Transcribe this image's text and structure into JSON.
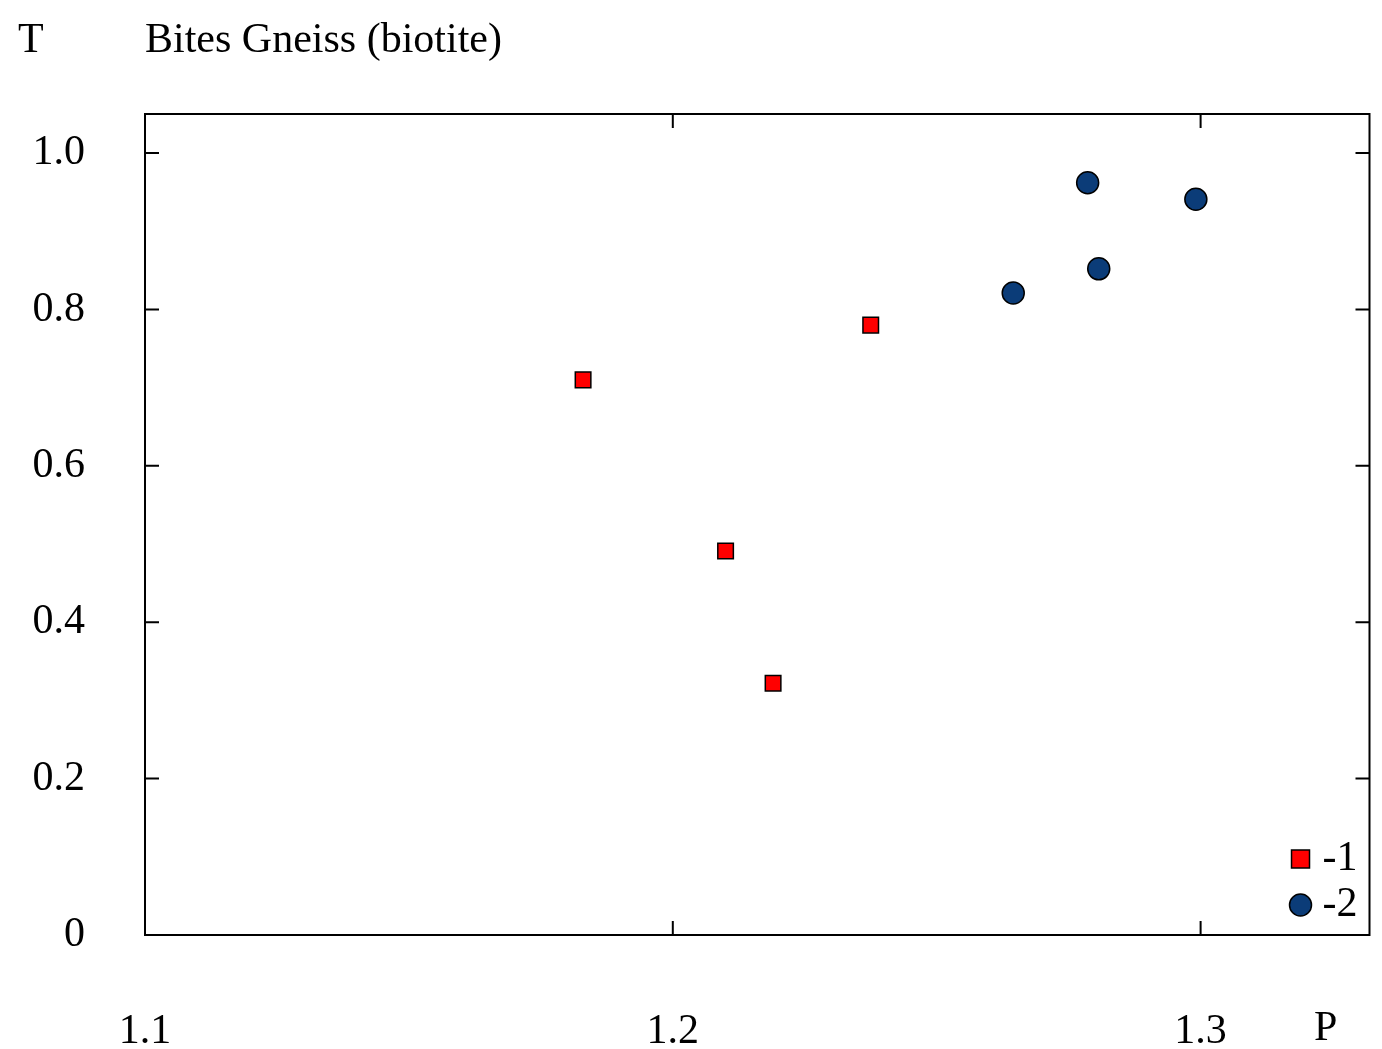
{
  "chart_data": {
    "type": "scatter",
    "title": "Bites Gneiss (biotite)",
    "xlabel": "P",
    "ylabel": "T",
    "xlim": [
      1.1,
      1.332
    ],
    "xticks": [
      1.1,
      1.2,
      1.3
    ],
    "ylim": [
      0,
      1.05
    ],
    "yticks": [
      0,
      {
        "value": 0.2,
        "label": "0.2"
      },
      {
        "value": 0.4,
        "label": "0.4"
      },
      {
        "value": 0.6,
        "label": "0.6"
      },
      {
        "value": 0.8,
        "label": "0.8"
      },
      {
        "value": 1,
        "label": "1.0"
      }
    ],
    "grid": false,
    "legend": "bottom right",
    "series": [
      {
        "name": "-1",
        "color": "#ff0000",
        "marker": "square",
        "x": [
          1.183,
          1.21,
          1.219,
          1.2375
        ],
        "values": [
          0.71,
          0.491,
          0.322,
          0.78
        ]
      },
      {
        "name": "-2",
        "color": "#0b3c78",
        "marker": "circle",
        "x": [
          1.2645,
          1.2786,
          1.2807,
          1.2991
        ],
        "values": [
          0.821,
          0.962,
          0.852,
          0.941
        ]
      }
    ]
  }
}
